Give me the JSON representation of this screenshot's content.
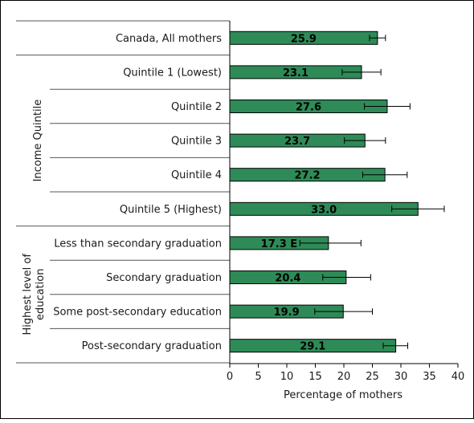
{
  "chart_data": {
    "type": "bar",
    "orientation": "horizontal",
    "categories": [
      "Canada, All mothers",
      "Quintile 1 (Lowest)",
      "Quintile 2",
      "Quintile 3",
      "Quintile 4",
      "Quintile 5 (Highest)",
      "Less than secondary graduation",
      "Secondary graduation",
      "Some post-secondary education",
      "Post-secondary graduation"
    ],
    "values": [
      25.9,
      23.1,
      27.6,
      23.7,
      27.2,
      33.0,
      17.3,
      20.4,
      19.9,
      29.1
    ],
    "value_labels": [
      "25.9",
      "23.1",
      "27.6",
      "23.7",
      "27.2",
      "33.0",
      "17.3 E",
      "20.4",
      "19.9",
      "29.1"
    ],
    "error_low": [
      24.5,
      19.7,
      23.6,
      20.1,
      23.3,
      28.4,
      12.3,
      16.3,
      14.9,
      26.9
    ],
    "error_high": [
      27.3,
      26.5,
      31.6,
      27.3,
      31.1,
      37.6,
      23.0,
      24.7,
      25.0,
      31.2
    ],
    "groups": [
      {
        "label": "",
        "start": 0,
        "end": 0
      },
      {
        "label": "Income Quintile",
        "start": 1,
        "end": 5
      },
      {
        "label": "Highest level of education",
        "label_lines": [
          "Highest level of",
          "education"
        ],
        "start": 6,
        "end": 9
      }
    ],
    "xlabel": "Percentage of mothers",
    "xlim": [
      0,
      40
    ],
    "xticks": [
      0,
      5,
      10,
      15,
      20,
      25,
      30,
      35,
      40
    ],
    "grid": false,
    "colors": {
      "bar_fill": "#2e8b57",
      "bar_stroke": "#000000",
      "error_bar": "#000000",
      "frame": "#000000"
    }
  }
}
